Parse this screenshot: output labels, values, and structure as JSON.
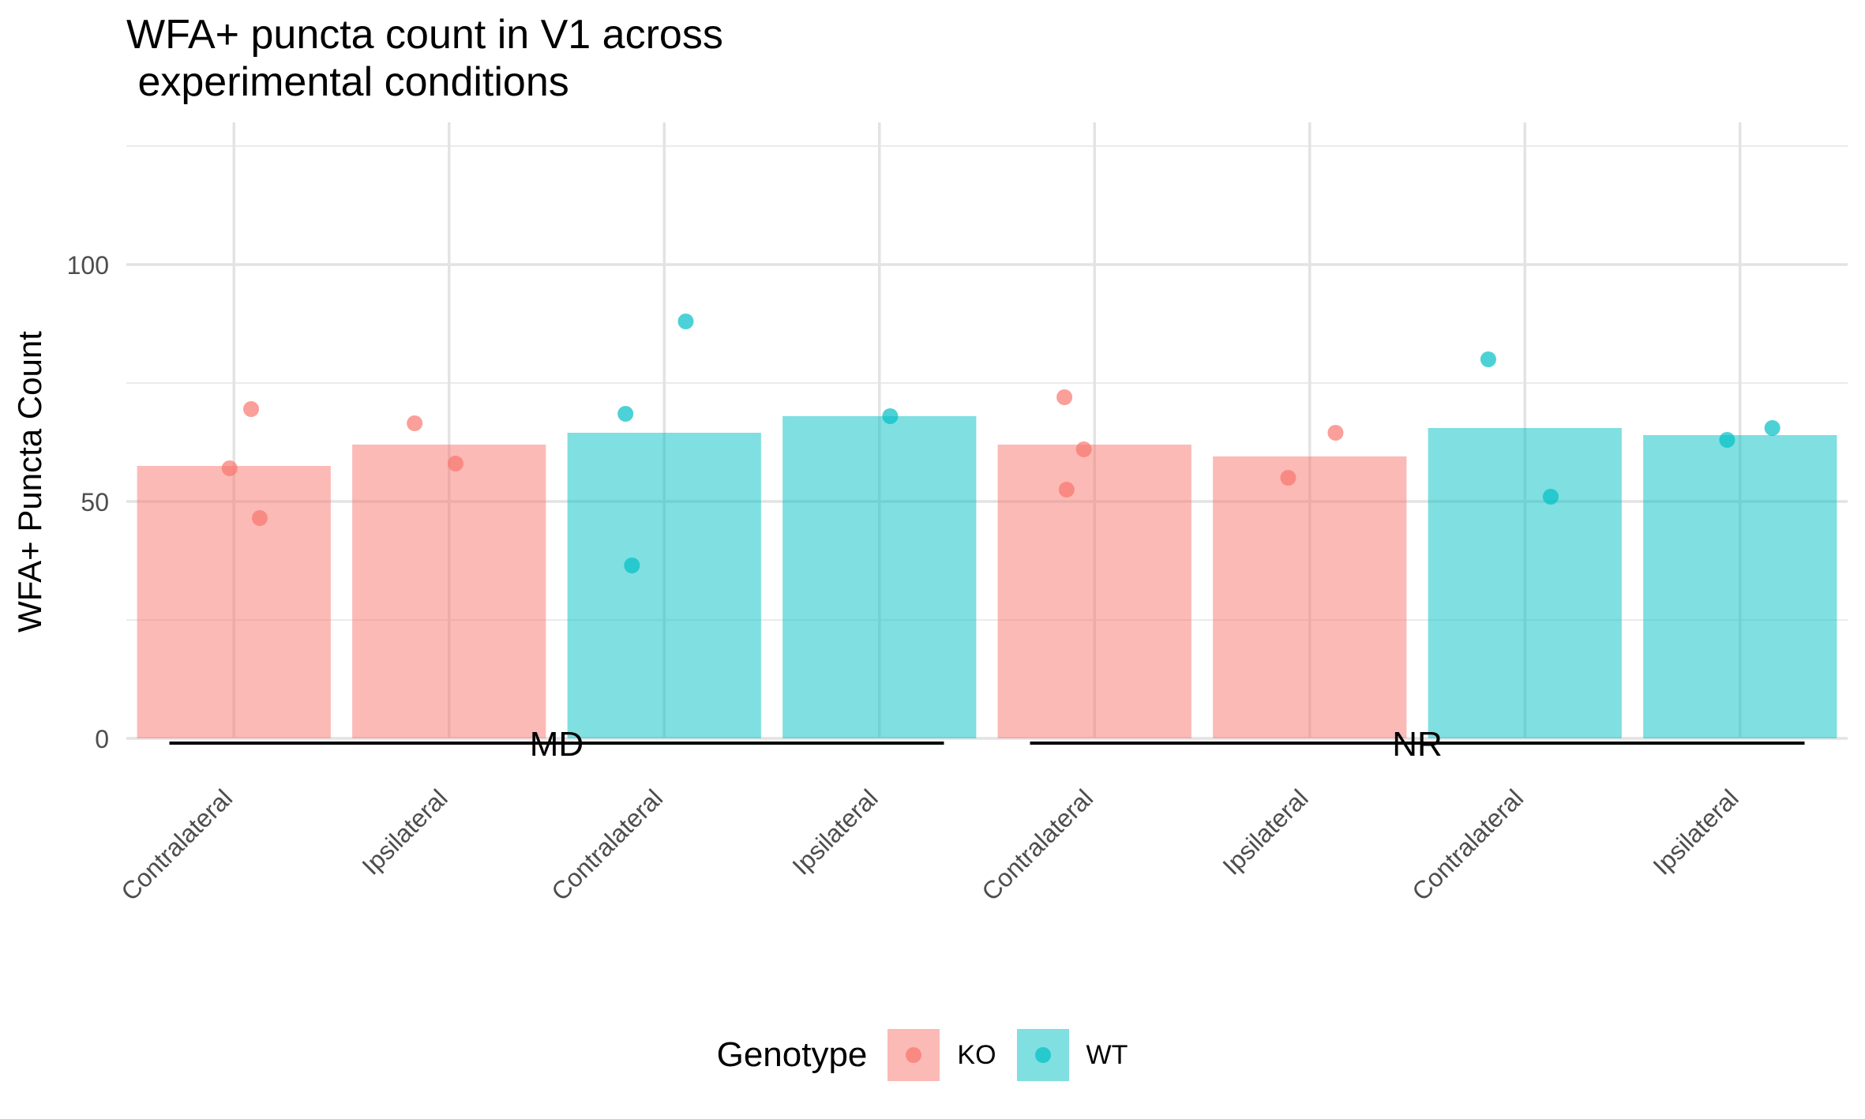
{
  "chart_data": {
    "type": "bar",
    "title": "WFA+ puncta count in V1 across\n experimental conditions",
    "ylabel": "WFA+ Puncta Count",
    "xlabel": "",
    "ylim": [
      0,
      130
    ],
    "yticks": [
      0,
      50,
      100
    ],
    "grid": true,
    "legend_placement": "bottom",
    "legend": {
      "title": "Genotype",
      "entries": [
        {
          "name": "KO",
          "color": "#F8766D"
        },
        {
          "name": "WT",
          "color": "#00BFC4"
        }
      ]
    },
    "categories": [
      "Contralateral",
      "Ipsilateral",
      "Contralateral",
      "Ipsilateral",
      "Contralateral",
      "Ipsilateral",
      "Contralateral",
      "Ipsilateral"
    ],
    "genotype": [
      "KO",
      "KO",
      "WT",
      "WT",
      "KO",
      "KO",
      "WT",
      "WT"
    ],
    "values": [
      57.5,
      62,
      64.5,
      68,
      62,
      59.5,
      65.5,
      64
    ],
    "points": [
      {
        "x": 1,
        "y": 69.5,
        "jitter": 0.08,
        "genotype": "KO"
      },
      {
        "x": 1,
        "y": 57,
        "jitter": -0.02,
        "genotype": "KO"
      },
      {
        "x": 1,
        "y": 46.5,
        "jitter": 0.12,
        "genotype": "KO"
      },
      {
        "x": 2,
        "y": 66.5,
        "jitter": -0.16,
        "genotype": "KO"
      },
      {
        "x": 2,
        "y": 58,
        "jitter": 0.03,
        "genotype": "KO"
      },
      {
        "x": 3,
        "y": 88,
        "jitter": 0.1,
        "genotype": "WT"
      },
      {
        "x": 3,
        "y": 68.5,
        "jitter": -0.18,
        "genotype": "WT"
      },
      {
        "x": 3,
        "y": 36.5,
        "jitter": -0.15,
        "genotype": "WT"
      },
      {
        "x": 4,
        "y": 68,
        "jitter": 0.05,
        "genotype": "WT"
      },
      {
        "x": 5,
        "y": 72,
        "jitter": -0.14,
        "genotype": "KO"
      },
      {
        "x": 5,
        "y": 61,
        "jitter": -0.05,
        "genotype": "KO"
      },
      {
        "x": 5,
        "y": 52.5,
        "jitter": -0.13,
        "genotype": "KO"
      },
      {
        "x": 6,
        "y": 64.5,
        "jitter": 0.12,
        "genotype": "KO"
      },
      {
        "x": 6,
        "y": 55,
        "jitter": -0.1,
        "genotype": "KO"
      },
      {
        "x": 7,
        "y": 80,
        "jitter": -0.17,
        "genotype": "WT"
      },
      {
        "x": 7,
        "y": 51,
        "jitter": 0.12,
        "genotype": "WT"
      },
      {
        "x": 8,
        "y": 65.5,
        "jitter": 0.15,
        "genotype": "WT"
      },
      {
        "x": 8,
        "y": 63,
        "jitter": -0.06,
        "genotype": "WT"
      }
    ],
    "groups": [
      {
        "label": "MD",
        "from": 1,
        "to": 4
      },
      {
        "label": "NR",
        "from": 5,
        "to": 8
      }
    ]
  }
}
